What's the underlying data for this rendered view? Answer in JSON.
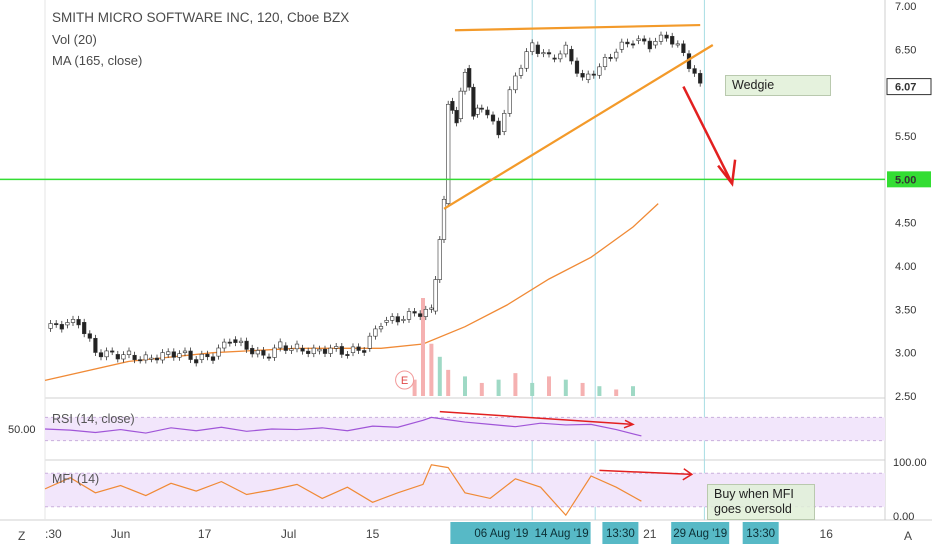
{
  "chart_data": {
    "type": "line",
    "title": "SMITH MICRO SOFTWARE INC, 120, Cboe BZX",
    "indicators": {
      "volume": "Vol (20)",
      "ma": "MA (165, close)",
      "rsi": "RSI (14, close)",
      "mfi": "MFI (14)"
    },
    "price_ticks": [
      "7.00",
      "6.50",
      "6.07",
      "5.50",
      "5.00",
      "4.50",
      "4.00",
      "3.50",
      "3.00",
      "2.50"
    ],
    "x_ticks": [
      ":30",
      "Jun",
      "17",
      "Jul",
      "15",
      "21",
      "16"
    ],
    "rsi_tick": "50.00",
    "mfi_ticks": [
      "100.00",
      "0.00"
    ],
    "date_badges": [
      "06 Aug '19",
      "14 Aug '19",
      "13:30",
      "29 Aug '19",
      "13:30"
    ],
    "close_price": 6.07,
    "support_level": 5.0,
    "earnings_marker": "E",
    "series": [
      {
        "name": "price",
        "x": [
          0,
          0.02,
          0.04,
          0.06,
          0.08,
          0.1,
          0.12,
          0.14,
          0.16,
          0.18,
          0.2,
          0.22,
          0.24,
          0.26,
          0.28,
          0.3,
          0.32,
          0.34,
          0.36,
          0.38,
          0.4,
          0.42,
          0.44,
          0.46,
          0.475,
          0.48,
          0.49,
          0.5,
          0.51,
          0.52,
          0.54,
          0.56,
          0.58,
          0.6,
          0.62,
          0.64,
          0.66,
          0.68,
          0.7,
          0.72,
          0.74,
          0.76,
          0.78
        ],
        "values": [
          3.28,
          3.32,
          3.35,
          3.0,
          2.98,
          2.97,
          2.93,
          2.98,
          3.0,
          2.92,
          2.96,
          3.15,
          3.05,
          2.95,
          3.08,
          3.05,
          3.02,
          3.05,
          3.0,
          3.05,
          3.35,
          3.38,
          3.45,
          3.48,
          4.72,
          5.9,
          5.7,
          6.28,
          5.75,
          5.8,
          5.55,
          6.2,
          6.55,
          6.4,
          6.5,
          6.15,
          6.3,
          6.5,
          6.6,
          6.55,
          6.65,
          6.45,
          6.07
        ]
      },
      {
        "name": "ma",
        "x": [
          0,
          0.1,
          0.2,
          0.3,
          0.4,
          0.45,
          0.5,
          0.55,
          0.6,
          0.65,
          0.7,
          0.73
        ],
        "values": [
          2.68,
          2.9,
          3.0,
          3.05,
          3.05,
          3.1,
          3.3,
          3.55,
          3.85,
          4.1,
          4.45,
          4.72
        ]
      }
    ],
    "volume": {
      "x": [
        0.44,
        0.45,
        0.46,
        0.47,
        0.48,
        0.5,
        0.52,
        0.54,
        0.56,
        0.58,
        0.6,
        0.62,
        0.64,
        0.66,
        0.68,
        0.7
      ],
      "values": [
        5,
        30,
        16,
        12,
        8,
        6,
        4,
        5,
        7,
        4,
        6,
        5,
        4,
        3,
        2,
        3
      ]
    },
    "rsi": {
      "x": [
        0,
        0.03,
        0.06,
        0.09,
        0.12,
        0.15,
        0.18,
        0.21,
        0.24,
        0.27,
        0.3,
        0.33,
        0.36,
        0.39,
        0.42,
        0.45,
        0.46,
        0.48,
        0.5,
        0.53,
        0.56,
        0.59,
        0.62,
        0.65,
        0.68,
        0.71
      ],
      "values": [
        50,
        48,
        44,
        49,
        43,
        52,
        47,
        53,
        46,
        50,
        49,
        52,
        47,
        55,
        53,
        65,
        70,
        66,
        62,
        58,
        54,
        60,
        57,
        58,
        49,
        38
      ]
    },
    "mfi": {
      "x": [
        0,
        0.03,
        0.06,
        0.09,
        0.12,
        0.15,
        0.18,
        0.21,
        0.24,
        0.27,
        0.3,
        0.33,
        0.36,
        0.39,
        0.42,
        0.45,
        0.46,
        0.48,
        0.5,
        0.53,
        0.56,
        0.59,
        0.62,
        0.65,
        0.68,
        0.71
      ],
      "values": [
        52,
        72,
        45,
        58,
        40,
        62,
        48,
        65,
        42,
        50,
        60,
        35,
        55,
        28,
        45,
        60,
        95,
        90,
        45,
        35,
        70,
        55,
        5,
        75,
        55,
        30
      ]
    },
    "notes": [
      "Wedgie",
      "Buy when MFI goes oversold"
    ],
    "colors": {
      "up": "#ffffff",
      "down": "#222222",
      "ma": "#f08a36",
      "wedge": "#f39a2a",
      "support": "#33dd33",
      "arrow": "#e22020",
      "rsi": "#a055d8",
      "mfi": "#f08a36",
      "band": "#f2e6fb",
      "badge": "#57b9c6",
      "vol_up": "#9fd9c5",
      "vol_dn": "#f5b1b1"
    }
  },
  "ui": {
    "left_corner": "Z",
    "right_corner": "A"
  }
}
